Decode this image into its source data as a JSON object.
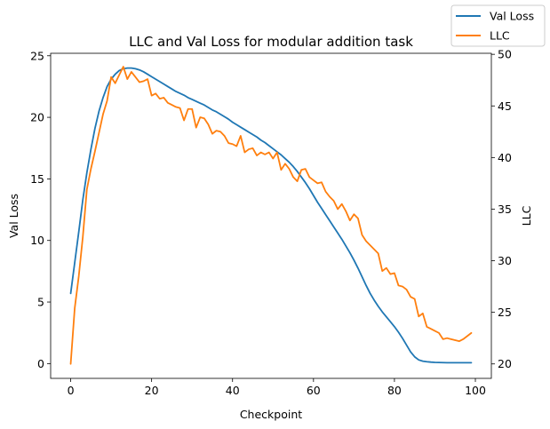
{
  "chart_data": {
    "type": "line",
    "title": "LLC and Val Loss for modular addition task",
    "xlabel": "Checkpoint",
    "ylabel_left": "Val Loss",
    "ylabel_right": "LLC",
    "xlim": [
      -4.95,
      103.95
    ],
    "ylim_left": [
      -1.2,
      25.2
    ],
    "ylim_right": [
      18.6,
      50.1
    ],
    "xticks": [
      0,
      20,
      40,
      60,
      80,
      100
    ],
    "yticks_left": [
      0,
      5,
      10,
      15,
      20,
      25
    ],
    "yticks_right": [
      20,
      25,
      30,
      35,
      40,
      45,
      50
    ],
    "legend_position": "upper-right-outside",
    "series": [
      {
        "name": "Val Loss",
        "axis": "left",
        "color": "#1f77b4",
        "x": [
          0,
          1,
          2,
          3,
          4,
          5,
          6,
          7,
          8,
          9,
          10,
          11,
          12,
          13,
          14,
          15,
          16,
          17,
          18,
          19,
          20,
          21,
          22,
          23,
          24,
          25,
          26,
          27,
          28,
          29,
          30,
          31,
          32,
          33,
          34,
          35,
          36,
          37,
          38,
          39,
          40,
          41,
          42,
          43,
          44,
          45,
          46,
          47,
          48,
          49,
          50,
          51,
          52,
          53,
          54,
          55,
          56,
          57,
          58,
          59,
          60,
          61,
          62,
          63,
          64,
          65,
          66,
          67,
          68,
          69,
          70,
          71,
          72,
          73,
          74,
          75,
          76,
          77,
          78,
          79,
          80,
          81,
          82,
          83,
          84,
          85,
          86,
          87,
          88,
          89,
          90,
          91,
          92,
          93,
          94,
          95,
          96,
          97,
          98,
          99
        ],
        "y": [
          5.7,
          8.2,
          10.7,
          13.3,
          15.5,
          17.4,
          19.1,
          20.5,
          21.6,
          22.5,
          23.1,
          23.5,
          23.8,
          23.95,
          24.0,
          24.0,
          23.95,
          23.85,
          23.7,
          23.5,
          23.3,
          23.1,
          22.9,
          22.7,
          22.5,
          22.3,
          22.1,
          21.95,
          21.8,
          21.6,
          21.45,
          21.3,
          21.15,
          21.0,
          20.8,
          20.6,
          20.45,
          20.25,
          20.05,
          19.85,
          19.6,
          19.4,
          19.2,
          19.0,
          18.8,
          18.6,
          18.4,
          18.15,
          17.95,
          17.7,
          17.45,
          17.2,
          16.95,
          16.65,
          16.35,
          16.0,
          15.6,
          15.15,
          14.7,
          14.2,
          13.65,
          13.1,
          12.6,
          12.1,
          11.6,
          11.1,
          10.6,
          10.1,
          9.55,
          9.0,
          8.4,
          7.75,
          7.05,
          6.35,
          5.7,
          5.15,
          4.65,
          4.2,
          3.8,
          3.4,
          3.0,
          2.55,
          2.05,
          1.5,
          0.95,
          0.55,
          0.3,
          0.2,
          0.15,
          0.12,
          0.1,
          0.09,
          0.08,
          0.07,
          0.07,
          0.07,
          0.07,
          0.07,
          0.07,
          0.07
        ]
      },
      {
        "name": "LLC",
        "axis": "right",
        "color": "#ff7f0e",
        "x": [
          0,
          1,
          2,
          3,
          4,
          5,
          6,
          7,
          8,
          9,
          10,
          11,
          12,
          13,
          14,
          15,
          16,
          17,
          18,
          19,
          20,
          21,
          22,
          23,
          24,
          25,
          26,
          27,
          28,
          29,
          30,
          31,
          32,
          33,
          34,
          35,
          36,
          37,
          38,
          39,
          40,
          41,
          42,
          43,
          44,
          45,
          46,
          47,
          48,
          49,
          50,
          51,
          52,
          53,
          54,
          55,
          56,
          57,
          58,
          59,
          60,
          61,
          62,
          63,
          64,
          65,
          66,
          67,
          68,
          69,
          70,
          71,
          72,
          73,
          74,
          75,
          76,
          77,
          78,
          79,
          80,
          81,
          82,
          83,
          84,
          85,
          86,
          87,
          88,
          89,
          90,
          91,
          92,
          93,
          94,
          95,
          96,
          97,
          98,
          99
        ],
        "y": [
          20.0,
          25.4,
          28.5,
          32.3,
          36.9,
          38.9,
          40.6,
          42.4,
          44.2,
          45.5,
          47.8,
          47.2,
          48.0,
          48.8,
          47.6,
          48.3,
          47.8,
          47.3,
          47.4,
          47.6,
          46.0,
          46.2,
          45.7,
          45.8,
          45.3,
          45.1,
          44.9,
          44.8,
          43.6,
          44.7,
          44.7,
          42.9,
          43.9,
          43.8,
          43.2,
          42.3,
          42.6,
          42.5,
          42.1,
          41.4,
          41.3,
          41.1,
          42.1,
          40.5,
          40.8,
          40.9,
          40.2,
          40.5,
          40.3,
          40.5,
          39.9,
          40.5,
          38.8,
          39.4,
          38.9,
          38.1,
          37.7,
          38.8,
          38.9,
          38.1,
          37.8,
          37.5,
          37.6,
          36.7,
          36.2,
          35.8,
          35.0,
          35.5,
          34.8,
          33.9,
          34.5,
          34.1,
          32.5,
          31.9,
          31.5,
          31.1,
          30.7,
          29.0,
          29.3,
          28.7,
          28.8,
          27.6,
          27.5,
          27.2,
          26.5,
          26.3,
          24.6,
          24.9,
          23.6,
          23.4,
          23.2,
          23.0,
          22.4,
          22.5,
          22.4,
          22.3,
          22.2,
          22.4,
          22.7,
          23.0
        ]
      }
    ]
  }
}
